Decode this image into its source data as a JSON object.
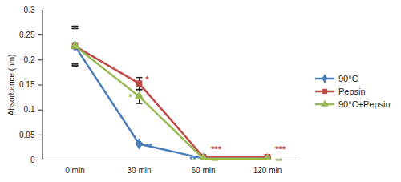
{
  "chart_data": {
    "type": "line",
    "y_label": "Absorbance (nm)",
    "categories": [
      "0 min",
      "30 min",
      "60 min",
      "120 min"
    ],
    "series": [
      {
        "name": "90°C",
        "color": "#4a7ebb",
        "marker": "diamond",
        "values": [
          0.228,
          0.032,
          0.003,
          0.002
        ],
        "errors": [
          0.038,
          0.002,
          0.001,
          0.001
        ],
        "significance": [
          null,
          "**",
          "**",
          "**"
        ]
      },
      {
        "name": "Pepsin",
        "color": "#be4b48",
        "marker": "square",
        "values": [
          0.228,
          0.153,
          0.006,
          0.006
        ],
        "errors": [
          0.04,
          0.012,
          0.002,
          0.002
        ],
        "significance": [
          null,
          "*",
          "***",
          "***"
        ]
      },
      {
        "name": "90°C+Pepsin",
        "color": "#98b954",
        "marker": "triangle",
        "values": [
          0.228,
          0.127,
          0.003,
          0.003
        ],
        "errors": [
          0.035,
          0.014,
          0.001,
          0.001
        ],
        "significance": [
          null,
          "*",
          "**",
          "**"
        ]
      }
    ],
    "ylim": [
      0,
      0.3
    ],
    "yticks": [
      0,
      0.05,
      0.1,
      0.15,
      0.2,
      0.25,
      0.3
    ],
    "grid": false,
    "legend": "right"
  }
}
